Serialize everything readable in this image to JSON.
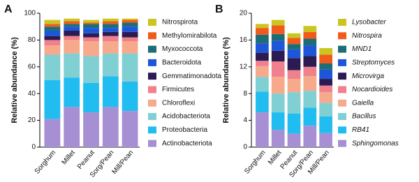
{
  "chart_data": [
    {
      "type": "stacked_bar",
      "panel_label": "A",
      "y_label": "Relative abundance (%)",
      "categories": [
        "Sorghum",
        "Millet",
        "Peanut",
        "Sorg/Pean",
        "Mill/Pean"
      ],
      "ylim": [
        0,
        100
      ],
      "yticks": [
        0,
        20,
        40,
        60,
        80,
        100
      ],
      "series": [
        {
          "name": "Actinobacteriota",
          "color": "#a78fd3",
          "values": [
            21,
            30,
            26,
            30,
            27
          ]
        },
        {
          "name": "Proteobacteria",
          "color": "#22bdf0",
          "values": [
            29,
            22,
            22,
            23,
            22
          ]
        },
        {
          "name": "Acidobacteriota",
          "color": "#7fcfd3",
          "values": [
            19,
            18,
            20,
            17,
            21
          ]
        },
        {
          "name": "Chloroflexi",
          "color": "#f7a98b",
          "values": [
            7,
            10,
            11,
            9,
            9
          ]
        },
        {
          "name": "Firmicutes",
          "color": "#f0808c",
          "values": [
            4,
            3,
            3,
            4,
            3
          ]
        },
        {
          "name": "Gemmatimonadota",
          "color": "#2b1b52",
          "values": [
            3,
            4,
            3,
            3,
            4
          ]
        },
        {
          "name": "Bacteroidota",
          "color": "#1d56d8",
          "values": [
            4,
            3,
            4,
            3,
            4
          ]
        },
        {
          "name": "Myxococcota",
          "color": "#1d6d77",
          "values": [
            3,
            2,
            3,
            3,
            3
          ]
        },
        {
          "name": "Methylomirabilota",
          "color": "#f25a1c",
          "values": [
            2,
            2,
            1,
            2,
            2
          ]
        },
        {
          "name": "Nitrospirota",
          "color": "#c9c61f",
          "values": [
            3,
            2,
            2,
            2,
            1
          ]
        }
      ]
    },
    {
      "type": "stacked_bar",
      "panel_label": "B",
      "y_label": "Relative abundance (%)",
      "categories": [
        "Sorghum",
        "Millet",
        "Peanut",
        "Sorg/Pean",
        "Mill/Pean"
      ],
      "ylim": [
        0,
        20
      ],
      "yticks": [
        0,
        4,
        8,
        12,
        16,
        20
      ],
      "legend_italic": true,
      "series": [
        {
          "name": "Sphingomonas",
          "color": "#a78fd3",
          "values": [
            5.2,
            2.6,
            2.0,
            3.2,
            2.1
          ]
        },
        {
          "name": "RB41",
          "color": "#22bdf0",
          "values": [
            3.1,
            2.6,
            3.0,
            2.7,
            2.5
          ]
        },
        {
          "name": "Bacillus",
          "color": "#7fcfd3",
          "values": [
            2.2,
            2.8,
            3.2,
            2.5,
            2.0
          ]
        },
        {
          "name": "Gaiella",
          "color": "#f7a98b",
          "values": [
            1.6,
            2.5,
            2.0,
            2.2,
            1.6
          ]
        },
        {
          "name": "Nocardioides",
          "color": "#f0808c",
          "values": [
            0.8,
            2.3,
            1.3,
            1.4,
            1.0
          ]
        },
        {
          "name": "Microvirga",
          "color": "#2b1b52",
          "values": [
            1.2,
            1.6,
            1.8,
            1.6,
            1.0
          ]
        },
        {
          "name": "Streptomyces",
          "color": "#1d56d8",
          "values": [
            1.4,
            1.5,
            1.3,
            1.6,
            1.4
          ]
        },
        {
          "name": "MND1",
          "color": "#1d6d77",
          "values": [
            1.3,
            1.0,
            0.8,
            1.0,
            0.9
          ]
        },
        {
          "name": "Nitrospira",
          "color": "#f25a1c",
          "values": [
            1.0,
            1.3,
            0.9,
            1.0,
            1.3
          ]
        },
        {
          "name": "Lysobacter",
          "color": "#c9c61f",
          "values": [
            0.6,
            0.8,
            0.7,
            0.9,
            1.0
          ]
        }
      ]
    }
  ]
}
